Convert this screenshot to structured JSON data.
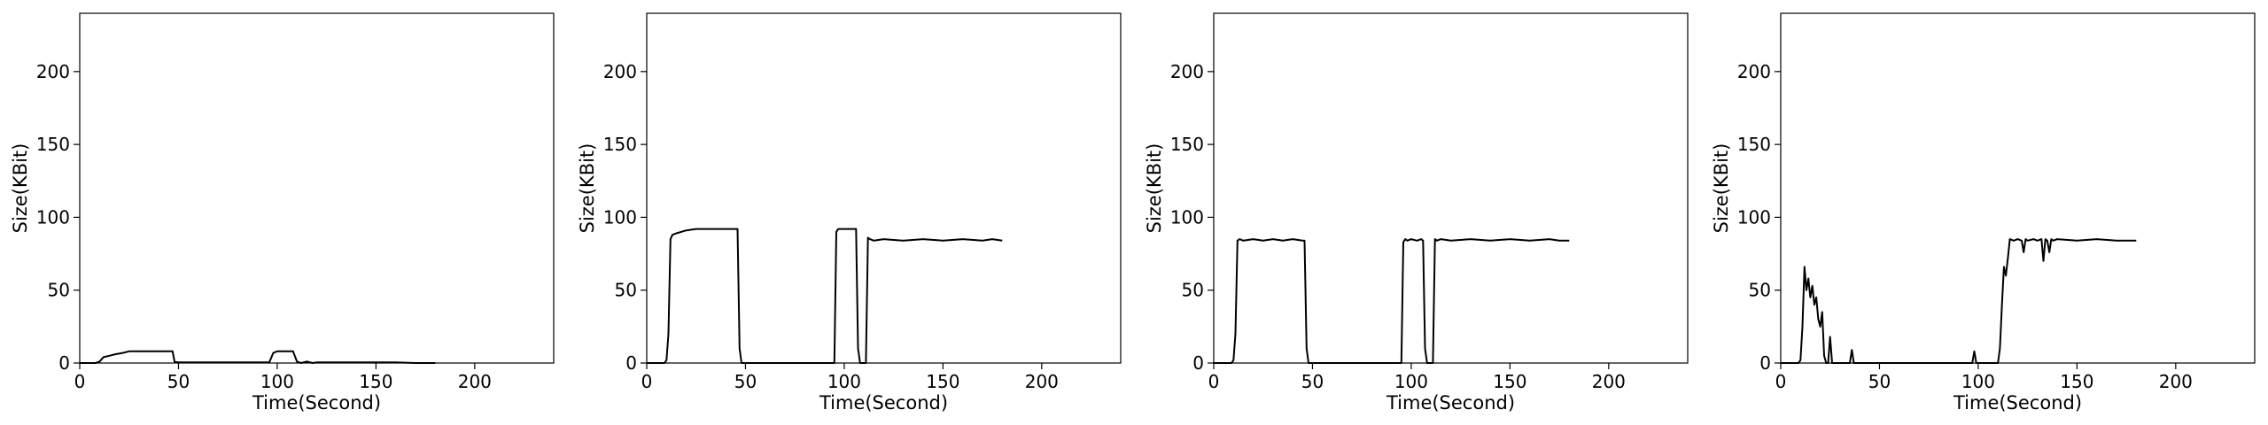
{
  "chart_data": [
    {
      "type": "line",
      "xlabel": "Time(Second)",
      "ylabel": "Size(KBit)",
      "xlim": [
        0,
        240
      ],
      "ylim": [
        0,
        240
      ],
      "xticks": [
        0,
        50,
        100,
        150,
        200
      ],
      "yticks": [
        0,
        50,
        100,
        150,
        200
      ],
      "grid": false,
      "series": [
        {
          "color": "#000000",
          "x": [
            0,
            8,
            10,
            12,
            15,
            18,
            22,
            25,
            30,
            35,
            40,
            45,
            47,
            48,
            50,
            55,
            60,
            70,
            80,
            90,
            96,
            98,
            100,
            105,
            108,
            110,
            112,
            115,
            118,
            120,
            130,
            140,
            150,
            160,
            170,
            180
          ],
          "y": [
            0,
            0,
            1,
            4,
            5,
            6,
            7,
            8,
            8,
            8,
            8,
            8,
            8,
            1,
            0.5,
            0.5,
            0.5,
            0.5,
            0.5,
            0.5,
            0.5,
            7,
            8,
            8,
            8,
            1,
            0,
            1,
            0,
            0.5,
            0.5,
            0.5,
            0.5,
            0.5,
            0,
            0
          ]
        }
      ]
    },
    {
      "type": "line",
      "xlabel": "Time(Second)",
      "ylabel": "Size(KBit)",
      "xlim": [
        0,
        240
      ],
      "ylim": [
        0,
        240
      ],
      "xticks": [
        0,
        50,
        100,
        150,
        200
      ],
      "yticks": [
        0,
        50,
        100,
        150,
        200
      ],
      "grid": false,
      "series": [
        {
          "color": "#000000",
          "x": [
            0,
            9,
            10,
            11,
            12,
            13,
            15,
            20,
            25,
            30,
            35,
            40,
            45,
            46,
            47,
            48,
            50,
            60,
            70,
            80,
            90,
            95,
            96,
            97,
            98,
            100,
            103,
            105,
            106,
            107,
            108,
            109,
            110,
            111,
            112,
            113,
            115,
            120,
            130,
            140,
            150,
            160,
            170,
            175,
            180
          ],
          "y": [
            0,
            0,
            2,
            20,
            85,
            88,
            89,
            91,
            92,
            92,
            92,
            92,
            92,
            92,
            10,
            0,
            0,
            0,
            0,
            0,
            0,
            0,
            90,
            92,
            92,
            92,
            92,
            92,
            92,
            10,
            0,
            0,
            0,
            0,
            86,
            85,
            84,
            85,
            84,
            85,
            84,
            85,
            84,
            85,
            84
          ]
        }
      ]
    },
    {
      "type": "line",
      "xlabel": "Time(Second)",
      "ylabel": "Size(KBit)",
      "xlim": [
        0,
        240
      ],
      "ylim": [
        0,
        240
      ],
      "xticks": [
        0,
        50,
        100,
        150,
        200
      ],
      "yticks": [
        0,
        50,
        100,
        150,
        200
      ],
      "grid": false,
      "series": [
        {
          "color": "#000000",
          "x": [
            0,
            9,
            10,
            11,
            12,
            13,
            15,
            20,
            25,
            30,
            35,
            40,
            45,
            46,
            47,
            48,
            50,
            60,
            70,
            80,
            90,
            95,
            96,
            97,
            98,
            100,
            103,
            105,
            106,
            107,
            108,
            109,
            110,
            111,
            112,
            113,
            115,
            120,
            130,
            140,
            150,
            160,
            170,
            175,
            180
          ],
          "y": [
            0,
            0,
            2,
            20,
            84,
            85,
            84,
            85,
            84,
            85,
            84,
            85,
            84,
            84,
            10,
            0,
            0,
            0,
            0,
            0,
            0,
            0,
            83,
            85,
            84,
            85,
            84,
            85,
            84,
            10,
            0,
            0,
            0,
            0,
            85,
            84,
            85,
            84,
            85,
            84,
            85,
            84,
            85,
            84,
            84
          ]
        }
      ]
    },
    {
      "type": "line",
      "xlabel": "Time(Second)",
      "ylabel": "Size(KBit)",
      "xlim": [
        0,
        240
      ],
      "ylim": [
        0,
        240
      ],
      "xticks": [
        0,
        50,
        100,
        150,
        200
      ],
      "yticks": [
        0,
        50,
        100,
        150,
        200
      ],
      "grid": false,
      "series": [
        {
          "color": "#000000",
          "x": [
            0,
            9,
            10,
            11,
            12,
            13,
            14,
            15,
            16,
            17,
            18,
            19,
            20,
            21,
            22,
            23,
            24,
            25,
            26,
            27,
            28,
            30,
            35,
            36,
            37,
            40,
            50,
            60,
            70,
            80,
            90,
            97,
            98,
            99,
            100,
            110,
            111,
            112,
            113,
            114,
            115,
            116,
            118,
            120,
            122,
            123,
            124,
            125,
            128,
            130,
            132,
            133,
            134,
            135,
            136,
            137,
            138,
            140,
            150,
            160,
            170,
            180
          ],
          "y": [
            0,
            0,
            2,
            25,
            66,
            50,
            58,
            45,
            53,
            40,
            45,
            30,
            25,
            35,
            5,
            0,
            0,
            18,
            0,
            0,
            0,
            0,
            0,
            9,
            0,
            0,
            0,
            0,
            0,
            0,
            0,
            0,
            8,
            0,
            0,
            0,
            10,
            40,
            66,
            60,
            72,
            85,
            84,
            85,
            84,
            76,
            85,
            84,
            85,
            84,
            85,
            70,
            85,
            84,
            76,
            85,
            84,
            85,
            84,
            85,
            84,
            84
          ]
        }
      ]
    }
  ]
}
